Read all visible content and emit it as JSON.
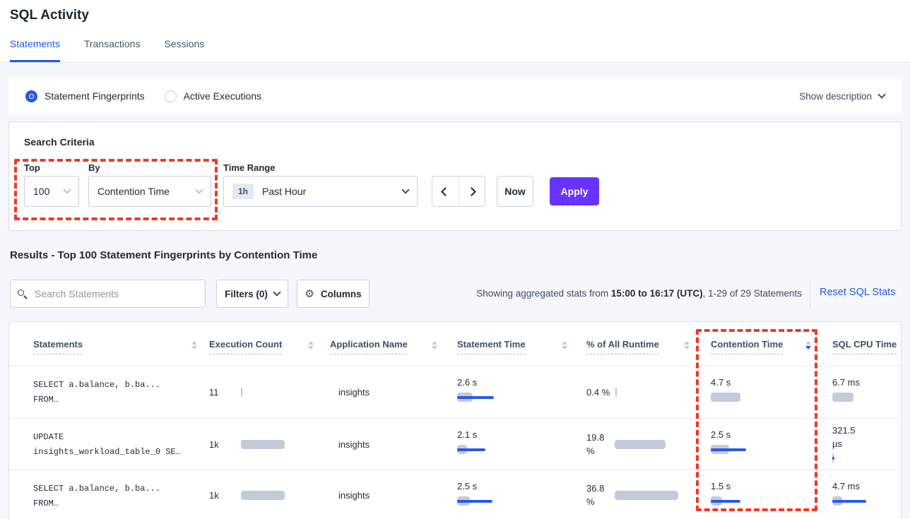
{
  "page_title": "SQL Activity",
  "tabs": {
    "statements": "Statements",
    "transactions": "Transactions",
    "sessions": "Sessions"
  },
  "view_toggle": {
    "statement_fingerprints": "Statement Fingerprints",
    "active_executions": "Active Executions",
    "show_description": "Show description"
  },
  "criteria": {
    "heading": "Search Criteria",
    "top_label": "Top",
    "top_value": "100",
    "by_label": "By",
    "by_value": "Contention Time",
    "time_range_label": "Time Range",
    "time_range_badge": "1h",
    "time_range_value": "Past Hour",
    "now_label": "Now",
    "apply_label": "Apply"
  },
  "results": {
    "heading": "Results - Top 100 Statement Fingerprints by Contention Time",
    "search_placeholder": "Search Statements",
    "filters_label": "Filters (0)",
    "columns_label": "Columns",
    "showing_prefix": "Showing aggregated stats from ",
    "showing_range": "15:00 to 16:17 (UTC)",
    "showing_suffix": ", 1-29 of 29 Statements",
    "reset_label": "Reset SQL Stats"
  },
  "table": {
    "sort": {
      "column": "Contention Time",
      "direction": "desc"
    },
    "headers": {
      "statements": "Statements",
      "execution_count": "Execution Count",
      "application_name": "Application Name",
      "statement_time": "Statement Time",
      "runtime_pct": "% of All Runtime",
      "contention_time": "Contention Time",
      "sql_cpu_time": "SQL CPU Time"
    },
    "rows": [
      {
        "statement_line1": "SELECT a.balance, b.ba...",
        "statement_line2": "FROM…",
        "execution_count": "11",
        "application": "insights",
        "statement_time": "2.6 s",
        "runtime_pct": "0.4 %",
        "contention_time": "4.7 s",
        "sql_cpu_time": "6.7 ms",
        "bars": {
          "execution": {
            "gray": 2,
            "blue": 0
          },
          "statement_time": {
            "gray": 22,
            "blue": 52
          },
          "runtime_pct": {
            "gray": 2,
            "blue": 0
          },
          "contention": {
            "gray": 42,
            "blue": 0
          },
          "sql_cpu": {
            "gray": 30,
            "blue": 0
          }
        }
      },
      {
        "statement_line1": "UPDATE",
        "statement_line2": "insights_workload_table_0 SE…",
        "execution_count": "1k",
        "application": "insights",
        "statement_time": "2.1 s",
        "runtime_pct": "19.8 %",
        "contention_time": "2.5 s",
        "sql_cpu_time": "321.5 µs",
        "bars": {
          "execution": {
            "gray": 62,
            "blue": 0
          },
          "statement_time": {
            "gray": 14,
            "blue": 40
          },
          "runtime_pct": {
            "gray": 72,
            "blue": 0
          },
          "contention": {
            "gray": 26,
            "blue": 50
          },
          "sql_cpu": {
            "gray": 2,
            "blue": 3
          }
        }
      },
      {
        "statement_line1": "SELECT a.balance, b.ba...",
        "statement_line2": "FROM…",
        "execution_count": "1k",
        "application": "insights",
        "statement_time": "2.5 s",
        "runtime_pct": "36.8 %",
        "contention_time": "1.5 s",
        "sql_cpu_time": "4.7 ms",
        "bars": {
          "execution": {
            "gray": 62,
            "blue": 0
          },
          "statement_time": {
            "gray": 18,
            "blue": 50
          },
          "runtime_pct": {
            "gray": 90,
            "blue": 0
          },
          "contention": {
            "gray": 16,
            "blue": 42
          },
          "sql_cpu": {
            "gray": 14,
            "blue": 48
          }
        }
      }
    ]
  },
  "colors": {
    "accent_blue": "#2458E4",
    "apply_purple": "#6933FF",
    "annotation_red": "#EE3A25",
    "bar_gray": "#C3CAD9",
    "bar_blue": "#2A5AE4"
  }
}
